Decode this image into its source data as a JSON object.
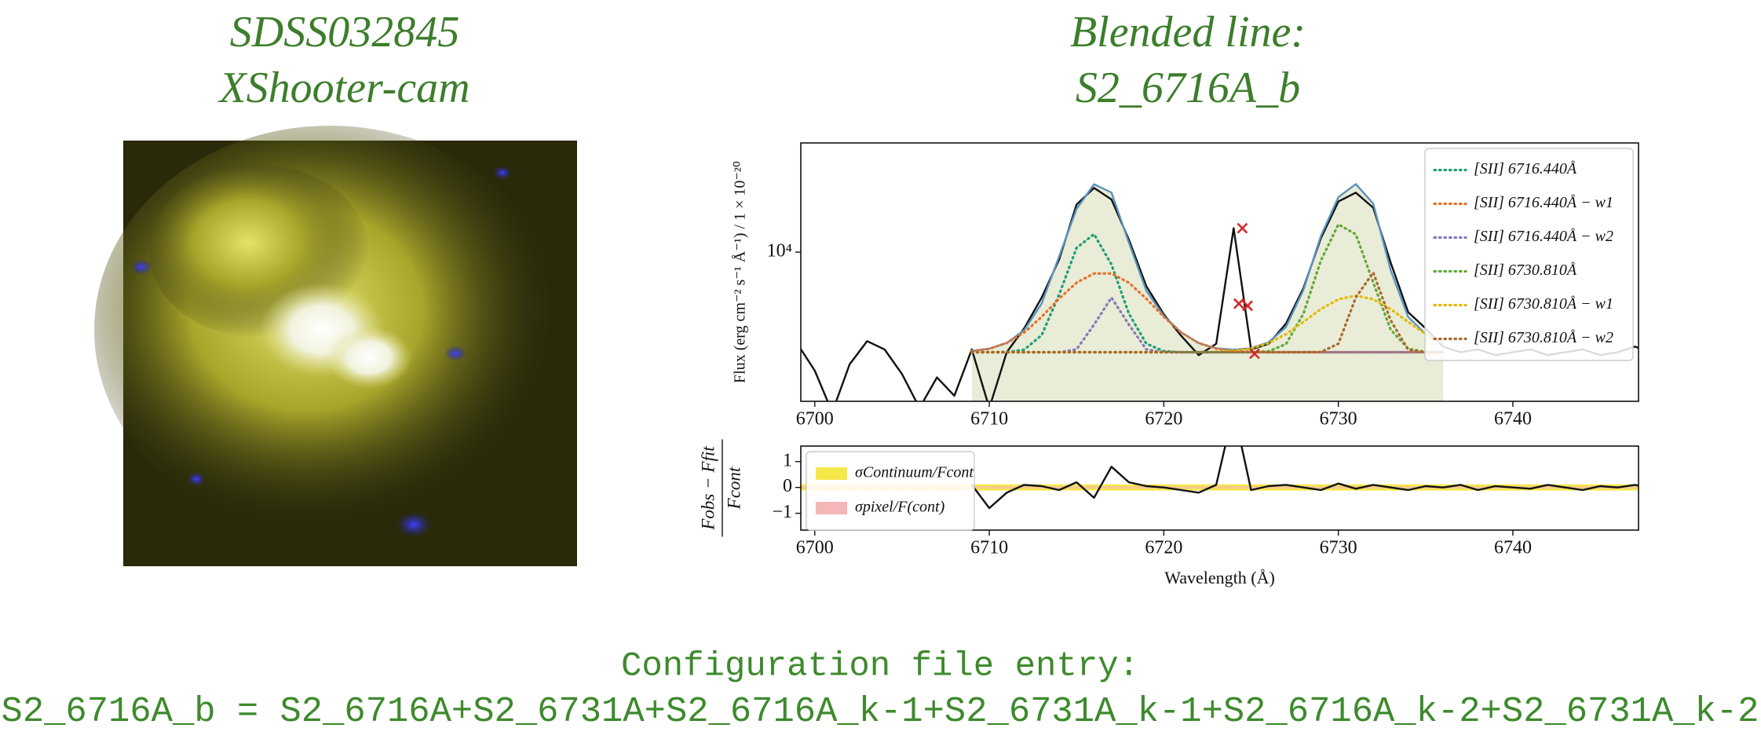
{
  "image_panel": {
    "title": [
      "SDSS032845",
      "XShooter-cam"
    ]
  },
  "config": {
    "heading": "Configuration file entry:",
    "entry": "S2_6716A_b = S2_6716A+S2_6731A+S2_6716A_k-1+S2_6731A_k-1+S2_6716A_k-2+S2_6731A_k-2"
  },
  "chart_data": [
    {
      "type": "line",
      "title": [
        "Blended line:",
        "S2_6716A_b"
      ],
      "ylabel": "Flux (erg cm⁻² s⁻¹ Å⁻¹) / 1 × 10⁻²⁰",
      "x": [
        6699,
        6700,
        6701,
        6702,
        6703,
        6704,
        6705,
        6706,
        6707,
        6708,
        6709,
        6710,
        6711,
        6712,
        6713,
        6714,
        6715,
        6716,
        6717,
        6718,
        6719,
        6720,
        6721,
        6722,
        6723,
        6724,
        6725,
        6726,
        6727,
        6728,
        6729,
        6730,
        6731,
        6732,
        6733,
        6734,
        6735,
        6736,
        6737,
        6738,
        6739,
        6740,
        6741,
        6742,
        6743,
        6744,
        6745,
        6746,
        6747,
        6748
      ],
      "series": [
        {
          "color": "#e9ecd6",
          "fill": true,
          "values": [
            null,
            null,
            null,
            null,
            null,
            null,
            null,
            null,
            null,
            null,
            5041,
            5126,
            5336,
            5823,
            7015,
            9699,
            13484,
            16002,
            15105,
            10673,
            7654,
            6425,
            5733,
            5329,
            5140,
            5089,
            5145,
            5355,
            5959,
            7695,
            11181,
            14629,
            16022,
            14000,
            8824,
            6383,
            5677,
            5324,
            null,
            null,
            null,
            null,
            null,
            null,
            null,
            null,
            null,
            null,
            null,
            null
          ]
        },
        {
          "color": "#111111",
          "values": [
            5300,
            4400,
            3300,
            4600,
            5400,
            5100,
            4300,
            3400,
            4200,
            3700,
            5100,
            3400,
            5000,
            5900,
            7300,
            9500,
            13900,
            15600,
            14400,
            10900,
            7900,
            6500,
            5600,
            4900,
            5300,
            11800,
            5100,
            5300,
            6100,
            7800,
            11000,
            14200,
            15100,
            13600,
            9300,
            6600,
            5900,
            5200,
            5000,
            5100,
            4900,
            5000,
            5100,
            4900,
            5000,
            5100,
            4900,
            5000,
            5200,
            4950
          ]
        },
        {
          "color": "#5b93bd",
          "values": [
            null,
            null,
            null,
            null,
            null,
            null,
            null,
            null,
            null,
            null,
            5041,
            5126,
            5336,
            5823,
            7015,
            9699,
            13484,
            16002,
            15105,
            10673,
            7654,
            6425,
            5733,
            5329,
            5140,
            5089,
            5145,
            5355,
            5959,
            7695,
            11181,
            14629,
            16022,
            14000,
            8824,
            6383,
            5677,
            5324,
            null,
            null,
            null,
            null,
            null,
            null,
            null,
            null,
            null,
            null,
            null,
            null
          ]
        },
        {
          "name": "[SII] 6716.440Å",
          "color": "#1f9e78",
          "style": "dotted",
          "values": [
            null,
            null,
            null,
            null,
            null,
            null,
            null,
            null,
            null,
            null,
            5000,
            5000,
            5007,
            5090,
            5627,
            7451,
            10293,
            11323,
            9179,
            6530,
            5307,
            5035,
            5000,
            5000,
            5000,
            5000,
            5000,
            5000,
            5000,
            5000,
            5000,
            5000,
            5000,
            5000,
            5000,
            5000,
            5000,
            5000,
            null,
            null,
            null,
            null,
            null,
            null,
            null,
            null,
            null,
            null,
            null,
            null
          ]
        },
        {
          "name": "[SII] 6716.440Å − w1",
          "color": "#e8702a",
          "style": "dotted",
          "values": [
            null,
            null,
            null,
            null,
            null,
            null,
            null,
            null,
            null,
            null,
            5041,
            5126,
            5329,
            5733,
            6388,
            7246,
            8090,
            8626,
            8626,
            8090,
            7246,
            6388,
            5733,
            5329,
            5126,
            5041,
            5011,
            5000,
            5000,
            5000,
            5000,
            5000,
            5000,
            5000,
            5000,
            5000,
            5000,
            5000,
            null,
            null,
            null,
            null,
            null,
            null,
            null,
            null,
            null,
            null,
            null,
            null
          ]
        },
        {
          "name": "[SII] 6716.440Å − w2",
          "color": "#8878b8",
          "style": "dotted",
          "values": [
            null,
            null,
            null,
            null,
            null,
            null,
            null,
            null,
            null,
            null,
            5000,
            5000,
            5000,
            5000,
            5000,
            5002,
            5101,
            6053,
            7300,
            6053,
            5101,
            5002,
            5000,
            5000,
            5000,
            5000,
            5000,
            5000,
            5000,
            5000,
            5000,
            5000,
            5000,
            5000,
            5000,
            5000,
            5000,
            5000,
            null,
            null,
            null,
            null,
            null,
            null,
            null,
            null,
            null,
            null,
            null,
            null
          ]
        },
        {
          "name": "[SII] 6730.810Å",
          "color": "#5fa83a",
          "style": "dotted",
          "values": [
            null,
            null,
            null,
            null,
            null,
            null,
            null,
            null,
            null,
            null,
            5000,
            5000,
            5000,
            5000,
            5000,
            5000,
            5000,
            5000,
            5000,
            5000,
            5000,
            5000,
            5000,
            5000,
            5000,
            5000,
            5000,
            5031,
            5292,
            6526,
            9431,
            12110,
            11315,
            8103,
            5847,
            5127,
            5010,
            5000,
            null,
            null,
            null,
            null,
            null,
            null,
            null,
            null,
            null,
            null,
            null,
            null
          ]
        },
        {
          "name": "[SII] 6730.810Å − w1",
          "color": "#e6b800",
          "style": "dotted",
          "values": [
            null,
            null,
            null,
            null,
            null,
            null,
            null,
            null,
            null,
            null,
            5000,
            5000,
            5000,
            5000,
            5000,
            5000,
            5000,
            5000,
            5000,
            5000,
            5000,
            5000,
            5000,
            5000,
            5014,
            5048,
            5134,
            5324,
            5667,
            6169,
            6742,
            7215,
            7400,
            7215,
            6742,
            6169,
            5667,
            5324,
            null,
            null,
            null,
            null,
            null,
            null,
            null,
            null,
            null,
            null,
            null,
            null
          ]
        },
        {
          "name": "[SII] 6730.810Å − w2",
          "color": "#a86a2a",
          "style": "dotted",
          "values": [
            null,
            null,
            null,
            null,
            null,
            null,
            null,
            null,
            null,
            null,
            5000,
            5000,
            5000,
            5000,
            5000,
            5000,
            5000,
            5000,
            5000,
            5000,
            5000,
            5000,
            5000,
            5000,
            5000,
            5000,
            5000,
            5000,
            5000,
            5000,
            5008,
            5304,
            7307,
            8682,
            6235,
            5087,
            5000,
            5000,
            null,
            null,
            null,
            null,
            null,
            null,
            null,
            null,
            null,
            null,
            null,
            null
          ]
        }
      ],
      "masked": {
        "color": "#d62728",
        "x": [
          6724.5,
          6724.3,
          6724.8,
          6725.2
        ],
        "values": [
          11800,
          7000,
          6900,
          4950
        ]
      },
      "xlim": [
        6699.2,
        6747.2
      ],
      "xticks": [
        6700,
        6710,
        6720,
        6730,
        6740
      ],
      "ylim": [
        3560,
        21300
      ],
      "yticks": [
        {
          "value": 10000,
          "label": "10⁴"
        }
      ],
      "log_scale": "y",
      "legend": "upper right"
    },
    {
      "type": "line",
      "ylabel": [
        "Fobs − Ffit",
        "Fcont"
      ],
      "xlabel": "Wavelength (Å)",
      "x": [
        6699,
        6700,
        6701,
        6702,
        6703,
        6704,
        6705,
        6706,
        6707,
        6708,
        6709,
        6710,
        6711,
        6712,
        6713,
        6714,
        6715,
        6716,
        6717,
        6718,
        6719,
        6720,
        6721,
        6722,
        6723,
        6724,
        6725,
        6726,
        6727,
        6728,
        6729,
        6730,
        6731,
        6732,
        6733,
        6734,
        6735,
        6736,
        6737,
        6738,
        6739,
        6740,
        6741,
        6742,
        6743,
        6744,
        6745,
        6746,
        6747,
        6748
      ],
      "series": [
        {
          "color": "#111111",
          "values": [
            null,
            null,
            null,
            null,
            null,
            null,
            null,
            null,
            null,
            null,
            0.1,
            -0.8,
            -0.2,
            0.1,
            0.05,
            -0.1,
            0.2,
            -0.4,
            0.8,
            0.2,
            0.05,
            0,
            -0.1,
            -0.2,
            0.1,
            3,
            -0.1,
            0.05,
            0.1,
            0,
            -0.1,
            0.15,
            -0.05,
            0.1,
            0,
            -0.1,
            0.05,
            0,
            0.1,
            -0.1,
            0.05,
            0,
            -0.05,
            0.1,
            0,
            -0.1,
            0.05,
            0,
            0.1,
            -0.05
          ]
        }
      ],
      "bands": [
        {
          "name": "σContinuum/Fcont",
          "color": "#f5e84a",
          "values": [
            0.12,
            0.12,
            0.12,
            0.12,
            0.12,
            0.12,
            0.12,
            0.12,
            0.12,
            0.12,
            0.12,
            0.12,
            0.12,
            0.12,
            0.12,
            0.12,
            0.12,
            0.12,
            0.12,
            0.12,
            0.12,
            0.12,
            0.12,
            0.12,
            0.12,
            0.12,
            0.12,
            0.12,
            0.12,
            0.12,
            0.12,
            0.12,
            0.12,
            0.12,
            0.12,
            0.12,
            0.12,
            0.12,
            0.12,
            0.12,
            0.12,
            0.12,
            0.12,
            0.12,
            0.12,
            0.12,
            0.12,
            0.12,
            0.12,
            0.12
          ]
        },
        {
          "name": "σpixel/F(cont)",
          "color": "#f4b6b6",
          "values": [
            0.05,
            0.05,
            0.05,
            0.05,
            0.05,
            0.05,
            0.05,
            0.05,
            0.05,
            0.05,
            0.05,
            0.05,
            0.05,
            0.05,
            0.05,
            0.05,
            0.05,
            0.05,
            0.05,
            0.05,
            0.05,
            0.05,
            0.05,
            0.05,
            0.05,
            0.05,
            0.05,
            0.05,
            0.05,
            0.05,
            0.05,
            0.05,
            0.05,
            0.05,
            0.05,
            0.05,
            0.05,
            0.05,
            0.05,
            0.05,
            0.05,
            0.05,
            0.05,
            0.05,
            0.05,
            0.05,
            0.05,
            0.05,
            0.05,
            0.05
          ]
        }
      ],
      "xlim": [
        6699.2,
        6747.2
      ],
      "xticks": [
        6700,
        6710,
        6720,
        6730,
        6740
      ],
      "ylim": [
        -1.65,
        1.6
      ],
      "yticks": [
        1,
        0,
        {
          "value": -1,
          "label": "−1"
        }
      ],
      "legend": "upper left"
    }
  ]
}
